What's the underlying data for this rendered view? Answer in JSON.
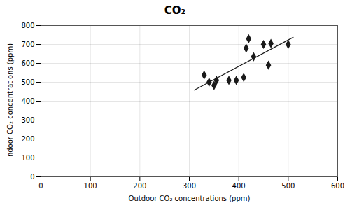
{
  "chart_data": {
    "type": "scatter",
    "title": "CO₂",
    "xlabel": "Outdoor CO₂ concentrations (ppm)",
    "ylabel": "Indoor CO₂ concentrations (ppm)",
    "x": [
      330,
      340,
      350,
      355,
      380,
      395,
      410,
      415,
      420,
      430,
      450,
      460,
      465,
      500
    ],
    "values": [
      538,
      500,
      483,
      510,
      510,
      510,
      525,
      680,
      730,
      635,
      700,
      590,
      705,
      700
    ],
    "color": "#1a1a1a",
    "marker": "diamond",
    "trend": {
      "type": "line",
      "x": [
        310,
        510
      ],
      "values": [
        458.4061,
        737.57
      ],
      "color": "#1a1a1a"
    },
    "xlim": [
      0,
      600
    ],
    "ylim": [
      0,
      800
    ],
    "xticks": [
      0,
      100,
      200,
      300,
      400,
      500,
      600
    ],
    "yticks": [
      0,
      100,
      200,
      300,
      400,
      500,
      600,
      700,
      800
    ],
    "grid": true
  }
}
